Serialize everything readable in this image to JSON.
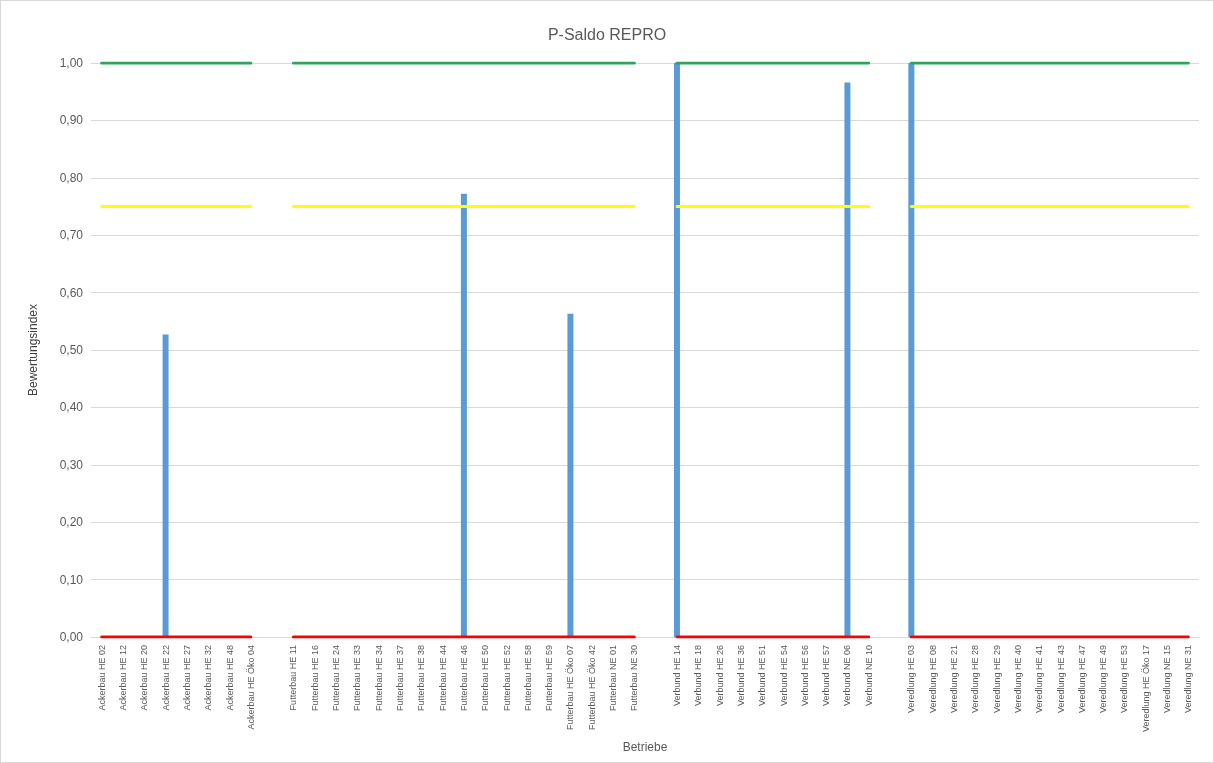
{
  "chart_data": {
    "type": "bar",
    "title": "P-Saldo REPRO",
    "xlabel": "Betriebe",
    "ylabel": "Bewertungsindex",
    "categories": [
      "Ackerbau HE 02",
      "Ackerbau HE 12",
      "Ackerbau HE 20",
      "Ackerbau HE 22",
      "Ackerbau HE 27",
      "Ackerbau HE 32",
      "Ackerbau HE 48",
      "Ackerbau HE Öko 04",
      null,
      "Futterbau HE 11",
      "Futterbau HE 16",
      "Futterbau HE 24",
      "Futterbau HE 33",
      "Futterbau HE 34",
      "Futterbau HE 37",
      "Futterbau HE 38",
      "Futterbau HE 44",
      "Futterbau HE 46",
      "Futterbau HE 50",
      "Futterbau HE 52",
      "Futterbau HE 58",
      "Futterbau HE 59",
      "Futterbau HE Öko 07",
      "Futterbau HE Öko 42",
      "Futterbau NE 01",
      "Futterbau NE 30",
      null,
      "Verbund HE 14",
      "Verbund HE 18",
      "Verbund HE 26",
      "Verbund HE 36",
      "Verbund HE 51",
      "Verbund HE 54",
      "Verbund HE 56",
      "Verbund HE 57",
      "Verbund NE 06",
      "Verbund NE 10",
      null,
      "Veredlung HE 03",
      "Veredlung HE 08",
      "Veredlung HE 21",
      "Veredlung HE 28",
      "Veredlung HE 29",
      "Veredlung HE 40",
      "Veredlung HE 41",
      "Veredlung HE 43",
      "Veredlung HE 47",
      "Veredlung HE 49",
      "Veredlung HE 53",
      "Veredlung HE Öko 17",
      "Veredlung NE 15",
      "Veredlung NE 31"
    ],
    "series": [
      {
        "color": "#5b9bd5",
        "values": [
          0,
          0,
          0,
          0.527,
          0,
          0,
          0,
          0,
          null,
          0,
          0,
          0,
          0,
          0,
          0,
          0,
          0,
          0.772,
          0,
          0,
          0,
          0,
          0.563,
          0,
          0,
          0,
          null,
          1.0,
          0,
          0,
          0,
          0,
          0,
          0,
          0,
          0.966,
          0,
          null,
          1.0,
          0,
          0,
          0,
          0,
          0,
          0,
          0,
          0,
          0,
          0,
          0,
          0,
          0
        ]
      },
      {
        "type": "line",
        "color": "#2ea55a",
        "values": [
          1,
          1,
          1,
          1,
          1,
          1,
          1,
          1,
          null,
          1,
          1,
          1,
          1,
          1,
          1,
          1,
          1,
          1,
          1,
          1,
          1,
          1,
          1,
          1,
          1,
          1,
          null,
          1,
          1,
          1,
          1,
          1,
          1,
          1,
          1,
          1,
          1,
          null,
          1,
          1,
          1,
          1,
          1,
          1,
          1,
          1,
          1,
          1,
          1,
          1,
          1,
          1
        ]
      },
      {
        "type": "line",
        "color": "#ffff00",
        "values": [
          0.75,
          0.75,
          0.75,
          0.75,
          0.75,
          0.75,
          0.75,
          0.75,
          null,
          0.75,
          0.75,
          0.75,
          0.75,
          0.75,
          0.75,
          0.75,
          0.75,
          0.75,
          0.75,
          0.75,
          0.75,
          0.75,
          0.75,
          0.75,
          0.75,
          0.75,
          null,
          0.75,
          0.75,
          0.75,
          0.75,
          0.75,
          0.75,
          0.75,
          0.75,
          0.75,
          0.75,
          null,
          0.75,
          0.75,
          0.75,
          0.75,
          0.75,
          0.75,
          0.75,
          0.75,
          0.75,
          0.75,
          0.75,
          0.75,
          0.75,
          0.75
        ]
      },
      {
        "type": "line",
        "color": "#ff0000",
        "values": [
          0,
          0,
          0,
          0,
          0,
          0,
          0,
          0,
          null,
          0,
          0,
          0,
          0,
          0,
          0,
          0,
          0,
          0,
          0,
          0,
          0,
          0,
          0,
          0,
          0,
          0,
          null,
          0,
          0,
          0,
          0,
          0,
          0,
          0,
          0,
          0,
          0,
          null,
          0,
          0,
          0,
          0,
          0,
          0,
          0,
          0,
          0,
          0,
          0,
          0,
          0,
          0
        ]
      }
    ],
    "ylim": [
      0,
      1
    ],
    "yticks": [
      {
        "value": 0,
        "label": "0,00"
      },
      {
        "value": 0.1,
        "label": "0,10"
      },
      {
        "value": 0.2,
        "label": "0,20"
      },
      {
        "value": 0.3,
        "label": "0,30"
      },
      {
        "value": 0.4,
        "label": "0,40"
      },
      {
        "value": 0.5,
        "label": "0,50"
      },
      {
        "value": 0.6,
        "label": "0,60"
      },
      {
        "value": 0.7,
        "label": "0,70"
      },
      {
        "value": 0.8,
        "label": "0,80"
      },
      {
        "value": 0.9,
        "label": "0,90"
      },
      {
        "value": 1,
        "label": "1,00"
      }
    ],
    "grid": "y"
  }
}
